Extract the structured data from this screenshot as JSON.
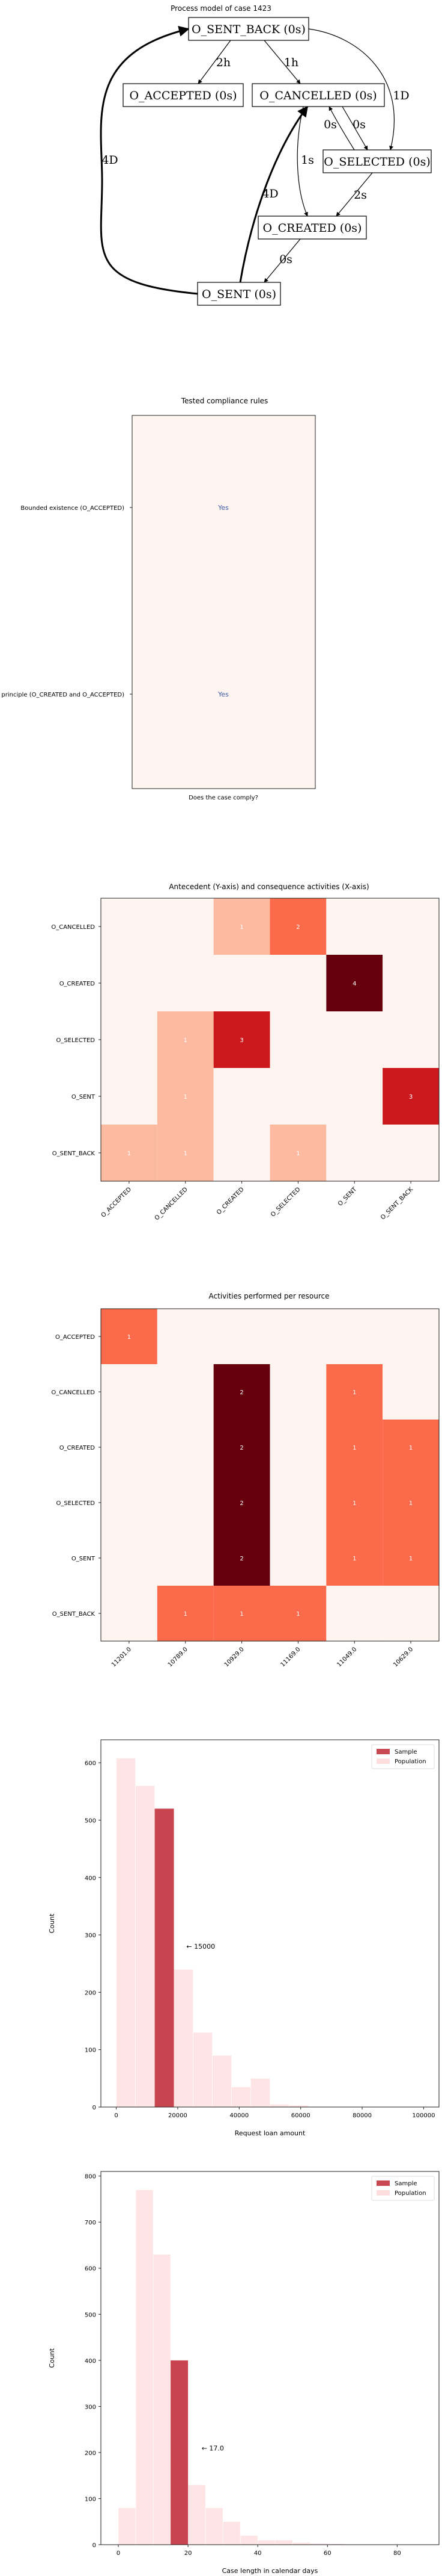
{
  "process_model": {
    "title": "Process model of case 1423",
    "nodes": [
      {
        "id": "sent_back",
        "label": "O_SENT_BACK (0s)"
      },
      {
        "id": "accepted",
        "label": "O_ACCEPTED (0s)"
      },
      {
        "id": "cancelled",
        "label": "O_CANCELLED (0s)"
      },
      {
        "id": "selected",
        "label": "O_SELECTED (0s)"
      },
      {
        "id": "created",
        "label": "O_CREATED (0s)"
      },
      {
        "id": "sent",
        "label": "O_SENT (0s)"
      }
    ],
    "edges": [
      {
        "from": "sent_back",
        "to": "accepted",
        "label": "2h"
      },
      {
        "from": "sent_back",
        "to": "cancelled",
        "label": "1h"
      },
      {
        "from": "sent_back",
        "to": "selected",
        "label": "1D"
      },
      {
        "from": "cancelled",
        "to": "selected",
        "label": "0s"
      },
      {
        "from": "selected",
        "to": "cancelled",
        "label": "0s"
      },
      {
        "from": "cancelled",
        "to": "created",
        "label": "1s"
      },
      {
        "from": "selected",
        "to": "created",
        "label": "2s"
      },
      {
        "from": "created",
        "to": "sent",
        "label": "0s"
      },
      {
        "from": "sent",
        "to": "cancelled",
        "label": "4D"
      },
      {
        "from": "sent",
        "to": "sent_back",
        "label": "4D"
      }
    ]
  },
  "chart_data": [
    {
      "type": "table",
      "title": "Tested compliance rules",
      "xlabel": "Does the case comply?",
      "rows": [
        "Bounded existence (O_ACCEPTED)",
        "Four eye principle (O_CREATED and O_ACCEPTED)"
      ],
      "values": [
        "Yes",
        "Yes"
      ]
    },
    {
      "type": "heatmap",
      "title": "Antecedent (Y-axis) and consequence activities (X-axis)",
      "x": [
        "O_ACCEPTED",
        "O_CANCELLED",
        "O_CREATED",
        "O_SELECTED",
        "O_SENT",
        "O_SENT_BACK"
      ],
      "y": [
        "O_CANCELLED",
        "O_CREATED",
        "O_SELECTED",
        "O_SENT",
        "O_SENT_BACK"
      ],
      "z": [
        [
          0,
          0,
          1,
          2,
          0,
          0
        ],
        [
          0,
          0,
          0,
          0,
          4,
          0
        ],
        [
          0,
          1,
          3,
          0,
          0,
          0
        ],
        [
          0,
          1,
          0,
          0,
          0,
          3
        ],
        [
          1,
          1,
          0,
          1,
          0,
          0
        ]
      ]
    },
    {
      "type": "heatmap",
      "title": "Activities performed per resource",
      "x": [
        "11201.0",
        "10789.0",
        "10929.0",
        "11169.0",
        "11049.0",
        "10629.0"
      ],
      "y": [
        "O_ACCEPTED",
        "O_CANCELLED",
        "O_CREATED",
        "O_SELECTED",
        "O_SENT",
        "O_SENT_BACK"
      ],
      "z": [
        [
          1,
          0,
          0,
          0,
          0,
          0
        ],
        [
          0,
          0,
          2,
          0,
          1,
          0
        ],
        [
          0,
          0,
          2,
          0,
          1,
          1
        ],
        [
          0,
          0,
          2,
          0,
          1,
          1
        ],
        [
          0,
          0,
          2,
          0,
          1,
          1
        ],
        [
          0,
          1,
          1,
          1,
          0,
          0
        ]
      ]
    },
    {
      "type": "bar",
      "xlabel": "Request loan amount",
      "ylabel": "Count",
      "xlim": [
        -5000,
        105000
      ],
      "ylim": [
        0,
        640
      ],
      "xticks": [
        "0",
        "20000",
        "40000",
        "60000",
        "80000",
        "100000"
      ],
      "yticks": [
        "0",
        "100",
        "200",
        "300",
        "400",
        "500",
        "600"
      ],
      "population_bins": [
        0,
        6250,
        12500,
        18750,
        25000,
        31250,
        37500,
        43750,
        50000,
        56250
      ],
      "population_counts": [
        608,
        560,
        520,
        240,
        130,
        90,
        35,
        50,
        5,
        3
      ],
      "sample_bin": [
        12500,
        18750
      ],
      "sample_count": 520,
      "annotation": "← 15000",
      "annotation_x": 15000,
      "legend": [
        "Sample",
        "Population"
      ],
      "legend_placement": "top-right"
    },
    {
      "type": "bar",
      "xlabel": "Case length in calendar days",
      "ylabel": "Count",
      "xlim": [
        -5,
        92
      ],
      "ylim": [
        0,
        810
      ],
      "xticks": [
        "0",
        "20",
        "40",
        "60",
        "80"
      ],
      "yticks": [
        "0",
        "100",
        "200",
        "300",
        "400",
        "500",
        "600",
        "700",
        "800"
      ],
      "population_bins": [
        0,
        5,
        10,
        15,
        20,
        25,
        30,
        35,
        40,
        45,
        50,
        55,
        60,
        65
      ],
      "population_counts": [
        80,
        770,
        630,
        400,
        130,
        80,
        50,
        20,
        10,
        10,
        5,
        3,
        2,
        1
      ],
      "sample_bin": [
        15,
        20
      ],
      "sample_count": 400,
      "annotation": "← 17.0",
      "annotation_x": 17,
      "legend": [
        "Sample",
        "Population"
      ],
      "legend_placement": "top-right"
    }
  ]
}
